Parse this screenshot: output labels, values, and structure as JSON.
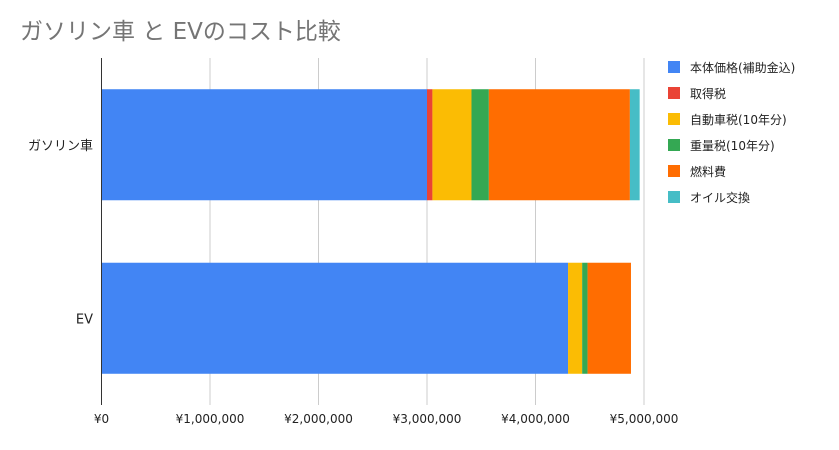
{
  "chart_data": {
    "type": "bar",
    "orientation": "horizontal",
    "stacked": true,
    "title": "ガソリン車 と EVのコスト比較",
    "categories": [
      "ガソリン車",
      "EV"
    ],
    "series": [
      {
        "name": "本体価格(補助金込)",
        "color": "#4285f4",
        "values": [
          3000000,
          4300000
        ]
      },
      {
        "name": "取得税",
        "color": "#ea4335",
        "values": [
          50000,
          0
        ]
      },
      {
        "name": "自動車税(10年分)",
        "color": "#fbbc04",
        "values": [
          360000,
          130000
        ]
      },
      {
        "name": "重量税(10年分)",
        "color": "#34a853",
        "values": [
          160000,
          50000
        ]
      },
      {
        "name": "燃料費",
        "color": "#ff6d01",
        "values": [
          1300000,
          400000
        ]
      },
      {
        "name": "オイル交換",
        "color": "#46bdc6",
        "values": [
          90000,
          0
        ]
      }
    ],
    "xticks": [
      "¥0",
      "¥1,000,000",
      "¥2,000,000",
      "¥3,000,000",
      "¥4,000,000",
      "¥5,000,000"
    ],
    "xlim": [
      0,
      5000000
    ],
    "grid": true,
    "legend_position": "right"
  }
}
